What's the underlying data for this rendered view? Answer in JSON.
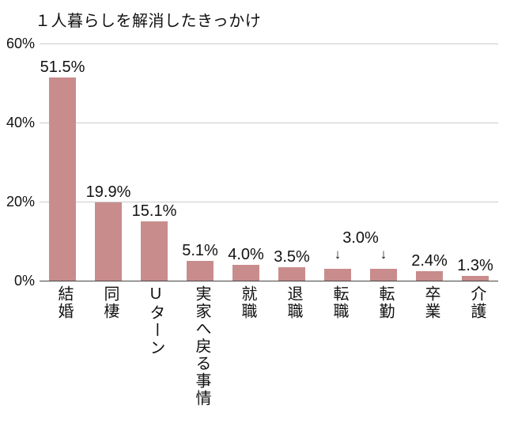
{
  "chart_data": {
    "type": "bar",
    "title": "１人暮らしを解消したきっかけ",
    "categories": [
      "結婚",
      "同棲",
      "Uターン",
      "実家へ戻る事情",
      "就職",
      "退職",
      "転職",
      "転勤",
      "卒業",
      "介護"
    ],
    "values": [
      51.5,
      19.9,
      15.1,
      5.1,
      4.0,
      3.5,
      3.0,
      3.0,
      2.4,
      1.3
    ],
    "value_labels": [
      "51.5%",
      "19.9%",
      "15.1%",
      "5.1%",
      "4.0%",
      "3.5%",
      "",
      "",
      "2.4%",
      "1.3%"
    ],
    "shared_label": {
      "text": "3.0%",
      "categories": [
        "転職",
        "転勤"
      ]
    },
    "yticks": [
      {
        "label": "0%",
        "value": 0
      },
      {
        "label": "20%",
        "value": 20
      },
      {
        "label": "40%",
        "value": 40
      },
      {
        "label": "60%",
        "value": 60
      }
    ],
    "ylim": [
      0,
      60
    ],
    "xlabel": "",
    "ylabel": "",
    "grid": true,
    "legend": "none",
    "bar_color": "#c98c8c"
  }
}
